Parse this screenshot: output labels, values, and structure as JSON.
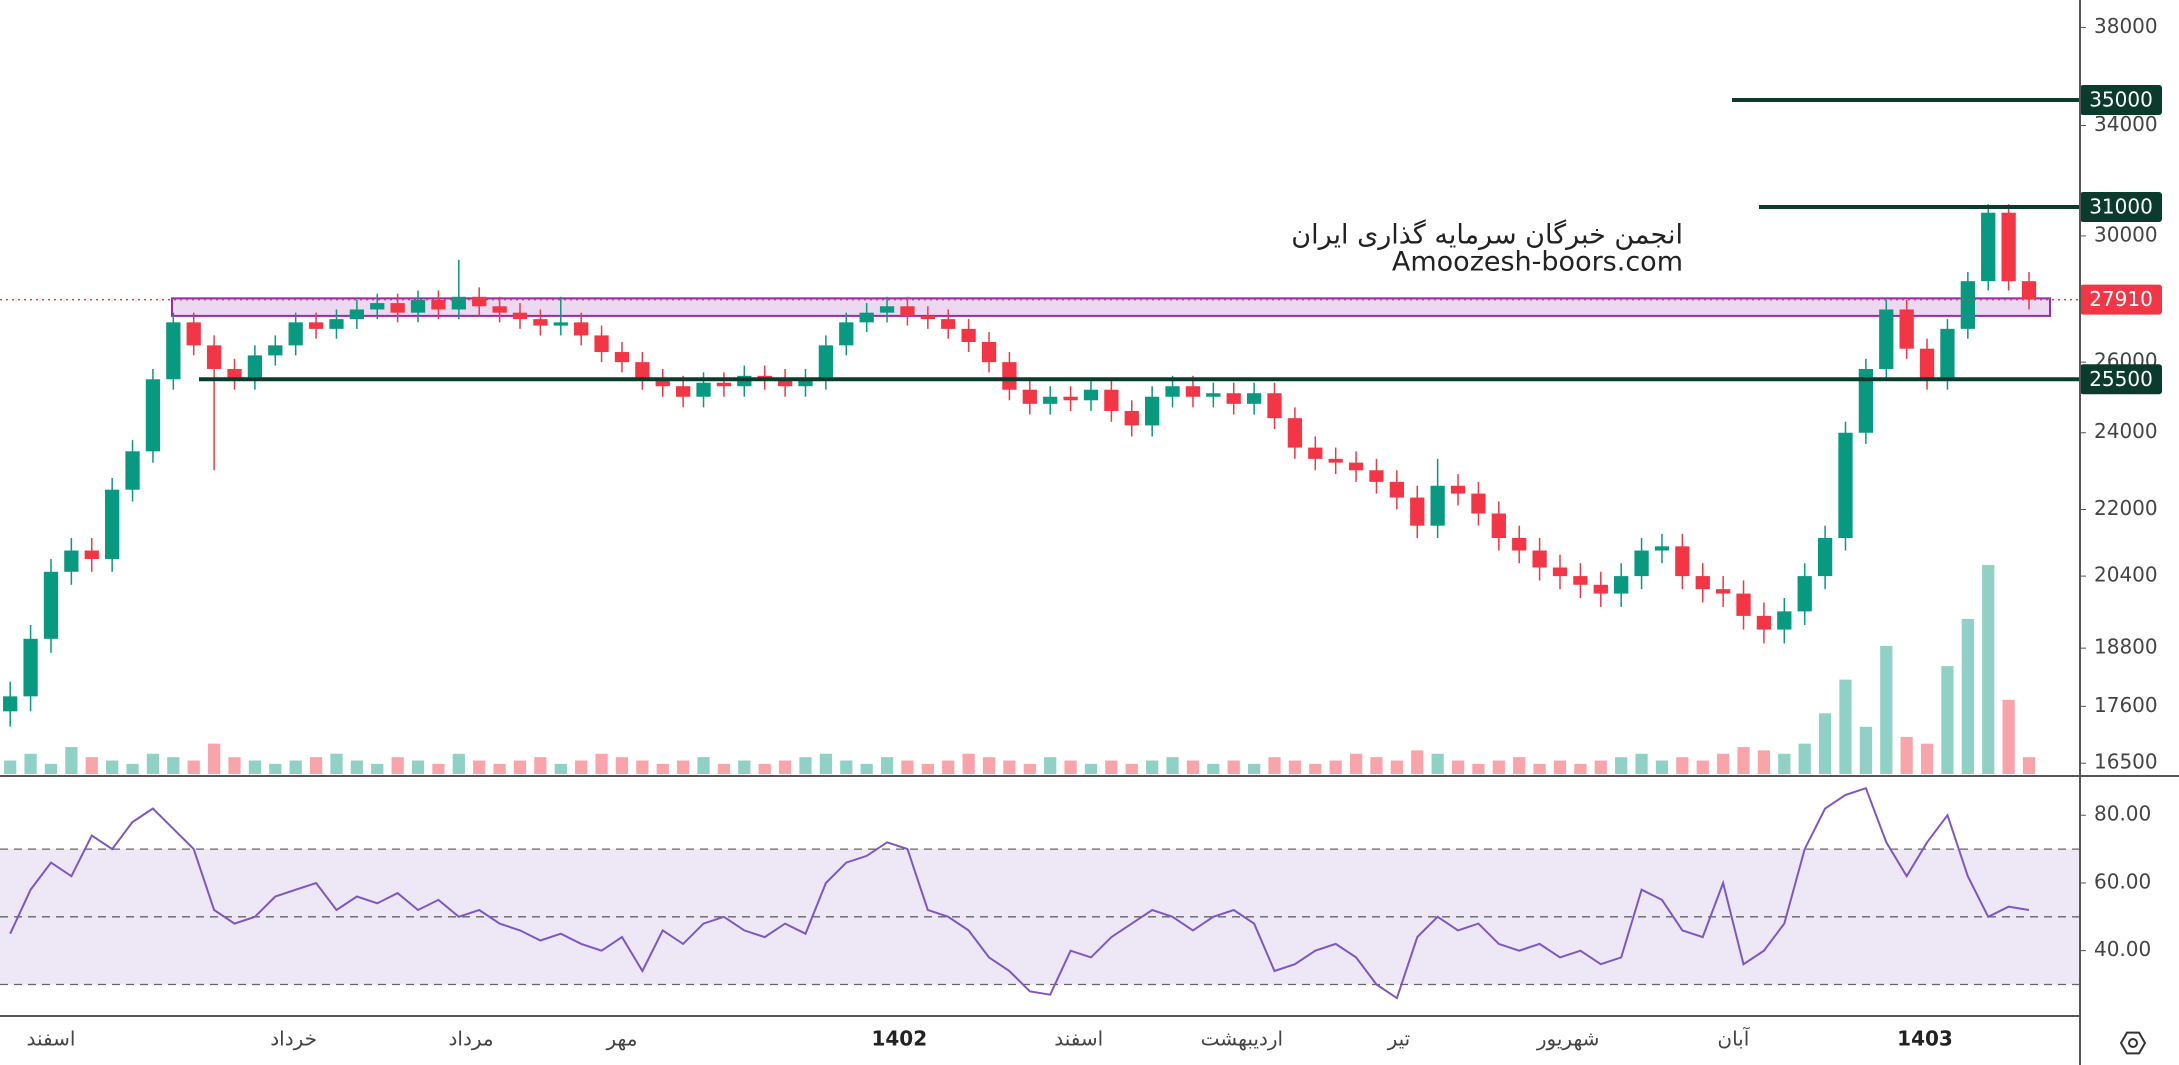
{
  "chart_data": [
    {
      "type": "candlestick",
      "open": [
        17500,
        17800,
        19000,
        20500,
        21000,
        20800,
        22500,
        23500,
        25500,
        27200,
        26500,
        25800,
        25500,
        26200,
        26500,
        27200,
        27000,
        27300,
        27600,
        27800,
        27500,
        27900,
        27600,
        28000,
        27700,
        27500,
        27300,
        27100,
        27200,
        26800,
        26300,
        26000,
        25500,
        25300,
        25000,
        25400,
        25300,
        25600,
        25500,
        25300,
        25500,
        26500,
        27200,
        27500,
        27700,
        27400,
        27300,
        27000,
        26600,
        26000,
        25200,
        24800,
        25000,
        24900,
        25200,
        24600,
        24200,
        25000,
        25300,
        25000,
        25100,
        24800,
        25100,
        24400,
        23600,
        23300,
        23200,
        23000,
        22700,
        22300,
        21600,
        22600,
        22400,
        21900,
        21300,
        21000,
        20600,
        20400,
        20200,
        20000,
        20400,
        21000,
        21100,
        20400,
        20100,
        20000,
        19500,
        19200,
        19600,
        20400,
        21300,
        24000,
        25800,
        27600,
        26400,
        25500,
        27000,
        28500,
        30800,
        28500
      ],
      "high": [
        18100,
        19300,
        20800,
        21300,
        21300,
        22800,
        23800,
        25800,
        27500,
        27500,
        26800,
        26100,
        26500,
        26800,
        27500,
        27500,
        27600,
        27900,
        28100,
        28100,
        28200,
        28200,
        29200,
        28300,
        28000,
        27800,
        27600,
        28000,
        27500,
        27100,
        26600,
        26300,
        25800,
        25600,
        25700,
        25700,
        25900,
        25900,
        25800,
        25800,
        26800,
        27500,
        27800,
        28000,
        28000,
        27700,
        27600,
        27300,
        26900,
        26300,
        25500,
        25300,
        25300,
        25500,
        25500,
        24900,
        25300,
        25600,
        25600,
        25400,
        25400,
        25400,
        25400,
        24700,
        23900,
        23600,
        23500,
        23300,
        23000,
        22600,
        23300,
        22900,
        22700,
        22200,
        21600,
        21300,
        20900,
        20700,
        20500,
        20700,
        21300,
        21400,
        21400,
        20700,
        20400,
        20300,
        19800,
        19900,
        20700,
        21600,
        24300,
        26100,
        27900,
        27900,
        26700,
        27300,
        28800,
        31100,
        31100,
        28800
      ],
      "low": [
        17200,
        17500,
        18700,
        20200,
        20500,
        20500,
        22200,
        23200,
        25200,
        26200,
        23000,
        25200,
        25200,
        25900,
        26200,
        26700,
        26700,
        27000,
        27300,
        27200,
        27200,
        27300,
        27300,
        27400,
        27200,
        27000,
        26800,
        26800,
        26500,
        26000,
        25700,
        25200,
        25000,
        24700,
        24700,
        25000,
        25000,
        25200,
        25000,
        25000,
        25200,
        26200,
        26900,
        27200,
        27100,
        27000,
        26700,
        26300,
        25700,
        24900,
        24500,
        24500,
        24600,
        24600,
        24300,
        23900,
        23900,
        24700,
        24700,
        24700,
        24500,
        24500,
        24100,
        23300,
        23000,
        22900,
        22700,
        22400,
        22000,
        21300,
        21300,
        22100,
        21600,
        21000,
        20700,
        20300,
        20100,
        19900,
        19700,
        19700,
        20100,
        20700,
        20100,
        19800,
        19700,
        19200,
        18900,
        18900,
        19300,
        20100,
        21000,
        23700,
        25500,
        26100,
        25200,
        25200,
        26700,
        28200,
        28200,
        27600
      ],
      "close": [
        17800,
        19000,
        20500,
        21000,
        20800,
        22500,
        23500,
        25500,
        27200,
        26500,
        25800,
        25500,
        26200,
        26500,
        27200,
        27000,
        27300,
        27600,
        27800,
        27500,
        27900,
        27600,
        28000,
        27700,
        27500,
        27300,
        27100,
        27200,
        26800,
        26300,
        26000,
        25500,
        25300,
        25000,
        25400,
        25300,
        25600,
        25500,
        25300,
        25500,
        26500,
        27200,
        27500,
        27700,
        27400,
        27300,
        27000,
        26600,
        26000,
        25200,
        24800,
        25000,
        24900,
        25200,
        24600,
        24200,
        25000,
        25300,
        25000,
        25100,
        24800,
        25100,
        24400,
        23600,
        23300,
        23200,
        23000,
        22700,
        22300,
        21600,
        22600,
        22400,
        21900,
        21300,
        21000,
        20600,
        20400,
        20200,
        20000,
        20400,
        21000,
        21100,
        20400,
        20100,
        20000,
        19500,
        19200,
        19600,
        20400,
        21300,
        24000,
        25800,
        27600,
        26400,
        25500,
        27000,
        28500,
        30800,
        28500,
        27910
      ],
      "volume": [
        4,
        6,
        3,
        8,
        5,
        4,
        3,
        6,
        5,
        4,
        9,
        5,
        4,
        3,
        4,
        5,
        6,
        4,
        3,
        5,
        4,
        3,
        6,
        4,
        3,
        4,
        5,
        3,
        4,
        6,
        5,
        4,
        3,
        4,
        5,
        3,
        4,
        3,
        4,
        5,
        6,
        4,
        3,
        5,
        4,
        3,
        4,
        6,
        5,
        4,
        3,
        5,
        4,
        3,
        4,
        3,
        4,
        5,
        4,
        3,
        4,
        3,
        5,
        4,
        3,
        4,
        6,
        5,
        4,
        7,
        6,
        4,
        3,
        4,
        5,
        3,
        4,
        3,
        4,
        5,
        6,
        4,
        5,
        4,
        6,
        8,
        7,
        6,
        9,
        18,
        28,
        14,
        38,
        11,
        9,
        32,
        46,
        62,
        22,
        5
      ],
      "up_color": "#089981",
      "down_color": "#f23645",
      "log_scale": true,
      "ylim": [
        16300,
        39200
      ],
      "yticks": [
        16500,
        17600,
        18800,
        20400,
        22000,
        24000,
        26000,
        30000,
        34000,
        38000
      ],
      "xlim": [
        0,
        102
      ],
      "xticks": [
        {
          "value": 2.5,
          "label": "اسفند"
        },
        {
          "value": 14.4,
          "label": "خرداد"
        },
        {
          "value": 23.1,
          "label": "مرداد"
        },
        {
          "value": 30.5,
          "label": "مهر"
        },
        {
          "value": 44.1,
          "label": "1402"
        },
        {
          "value": 52.9,
          "label": "اسفند"
        },
        {
          "value": 60.9,
          "label": "اردیبهشت"
        },
        {
          "value": 68.6,
          "label": "تیر"
        },
        {
          "value": 76.9,
          "label": "شهریور"
        },
        {
          "value": 85.0,
          "label": "آبان"
        },
        {
          "value": 94.4,
          "label": "1403"
        }
      ],
      "levels": [
        35000,
        31000,
        25500
      ],
      "level_color": "#0b3b2c",
      "zone": [
        27400,
        27950
      ],
      "zone_color": "#9c27b0",
      "annotations": [
        "انجمن خبرگان سرمایه گذاری ایران",
        "Amoozesh-boors.com"
      ]
    },
    {
      "type": "line",
      "values": [
        45,
        58,
        66,
        62,
        74,
        70,
        78,
        82,
        76,
        70,
        52,
        48,
        50,
        56,
        58,
        60,
        52,
        56,
        54,
        57,
        52,
        55,
        50,
        52,
        48,
        46,
        43,
        45,
        42,
        40,
        44,
        34,
        46,
        42,
        48,
        50,
        46,
        44,
        48,
        45,
        60,
        66,
        68,
        72,
        70,
        52,
        50,
        46,
        38,
        34,
        28,
        27,
        40,
        38,
        44,
        48,
        52,
        50,
        46,
        50,
        52,
        48,
        34,
        36,
        40,
        42,
        38,
        30,
        26,
        44,
        50,
        46,
        48,
        42,
        40,
        42,
        38,
        40,
        36,
        38,
        58,
        55,
        46,
        44,
        60,
        36,
        40,
        48,
        70,
        82,
        86,
        88,
        72,
        62,
        72,
        80,
        62,
        50,
        53,
        52
      ],
      "color": "#7e57c2",
      "band_color": "#ede7f6",
      "ylim": [
        21,
        91
      ],
      "yticks": [
        {
          "value": 40,
          "label": "40.00"
        },
        {
          "value": 60,
          "label": "60.00"
        },
        {
          "value": 80,
          "label": "80.00"
        }
      ],
      "levels": [
        30,
        50,
        70
      ]
    }
  ]
}
